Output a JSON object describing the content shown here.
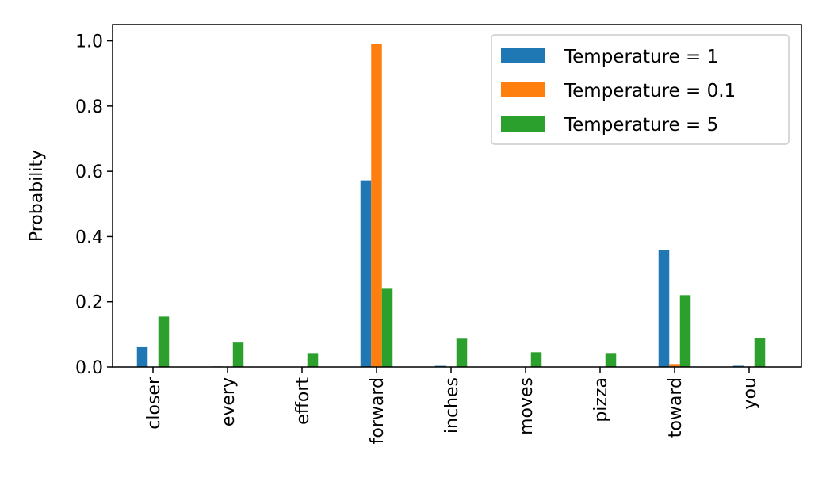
{
  "chart_data": {
    "type": "bar",
    "title": "",
    "xlabel": "",
    "ylabel": "Probability",
    "ylim": [
      0,
      1.05
    ],
    "yticks": [
      0.0,
      0.2,
      0.4,
      0.6,
      0.8,
      1.0
    ],
    "ytick_labels": [
      "0.0",
      "0.2",
      "0.4",
      "0.6",
      "0.8",
      "1.0"
    ],
    "categories": [
      "closer",
      "every",
      "effort",
      "forward",
      "inches",
      "moves",
      "pizza",
      "toward",
      "you"
    ],
    "series": [
      {
        "name": "Temperature = 1",
        "color": "#1f77b4",
        "values": [
          0.0609,
          0.0016,
          0.0001,
          0.5721,
          0.0034,
          0.0001,
          0.0001,
          0.3576,
          0.0036
        ]
      },
      {
        "name": "Temperature = 0.1",
        "color": "#ff7f0e",
        "values": [
          0.0,
          0.0,
          0.0,
          0.991,
          0.0,
          0.0,
          0.0,
          0.009,
          0.0
        ]
      },
      {
        "name": "Temperature = 5",
        "color": "#2ca02c",
        "values": [
          0.1546,
          0.075,
          0.0429,
          0.2421,
          0.0869,
          0.0454,
          0.043,
          0.2203,
          0.0898
        ]
      }
    ],
    "legend": {
      "position": "top-right"
    },
    "grid": false
  }
}
